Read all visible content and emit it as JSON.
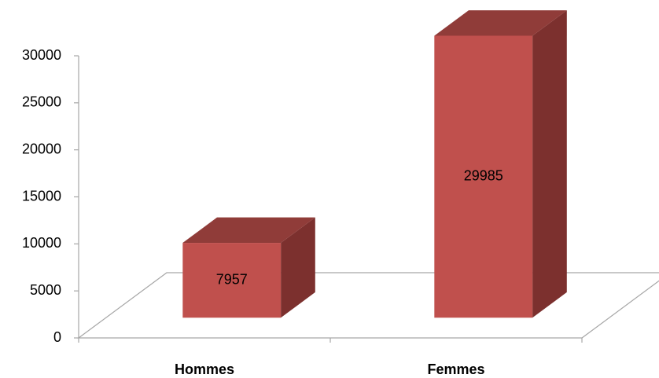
{
  "chart_data": {
    "type": "bar",
    "categories": [
      "Hommes",
      "Femmes"
    ],
    "values": [
      7957,
      29985
    ],
    "color": "#c0504d",
    "ylim": [
      0,
      30000
    ],
    "yticks": [
      0,
      5000,
      10000,
      15000,
      20000,
      25000,
      30000
    ]
  }
}
